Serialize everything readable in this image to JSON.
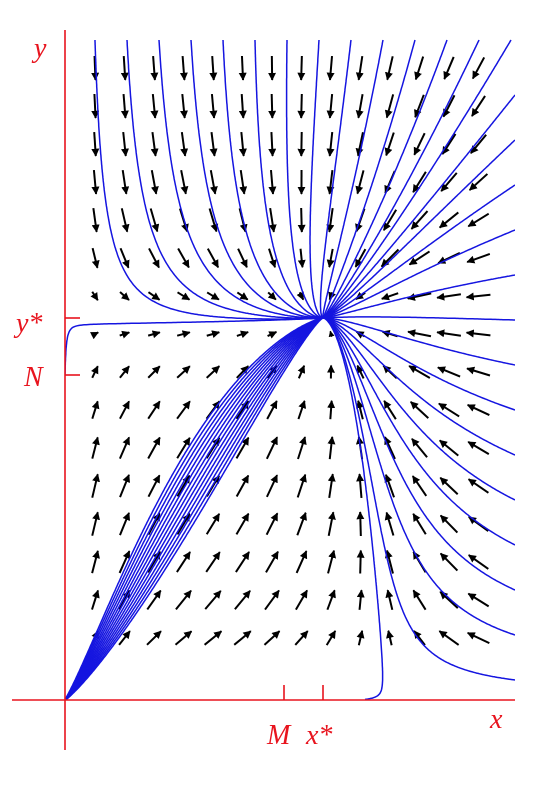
{
  "axes": {
    "y_label": "y",
    "x_label": "x",
    "y_star": "y*",
    "n_label": "N",
    "m_label": "M",
    "x_star": "x*"
  }
}
